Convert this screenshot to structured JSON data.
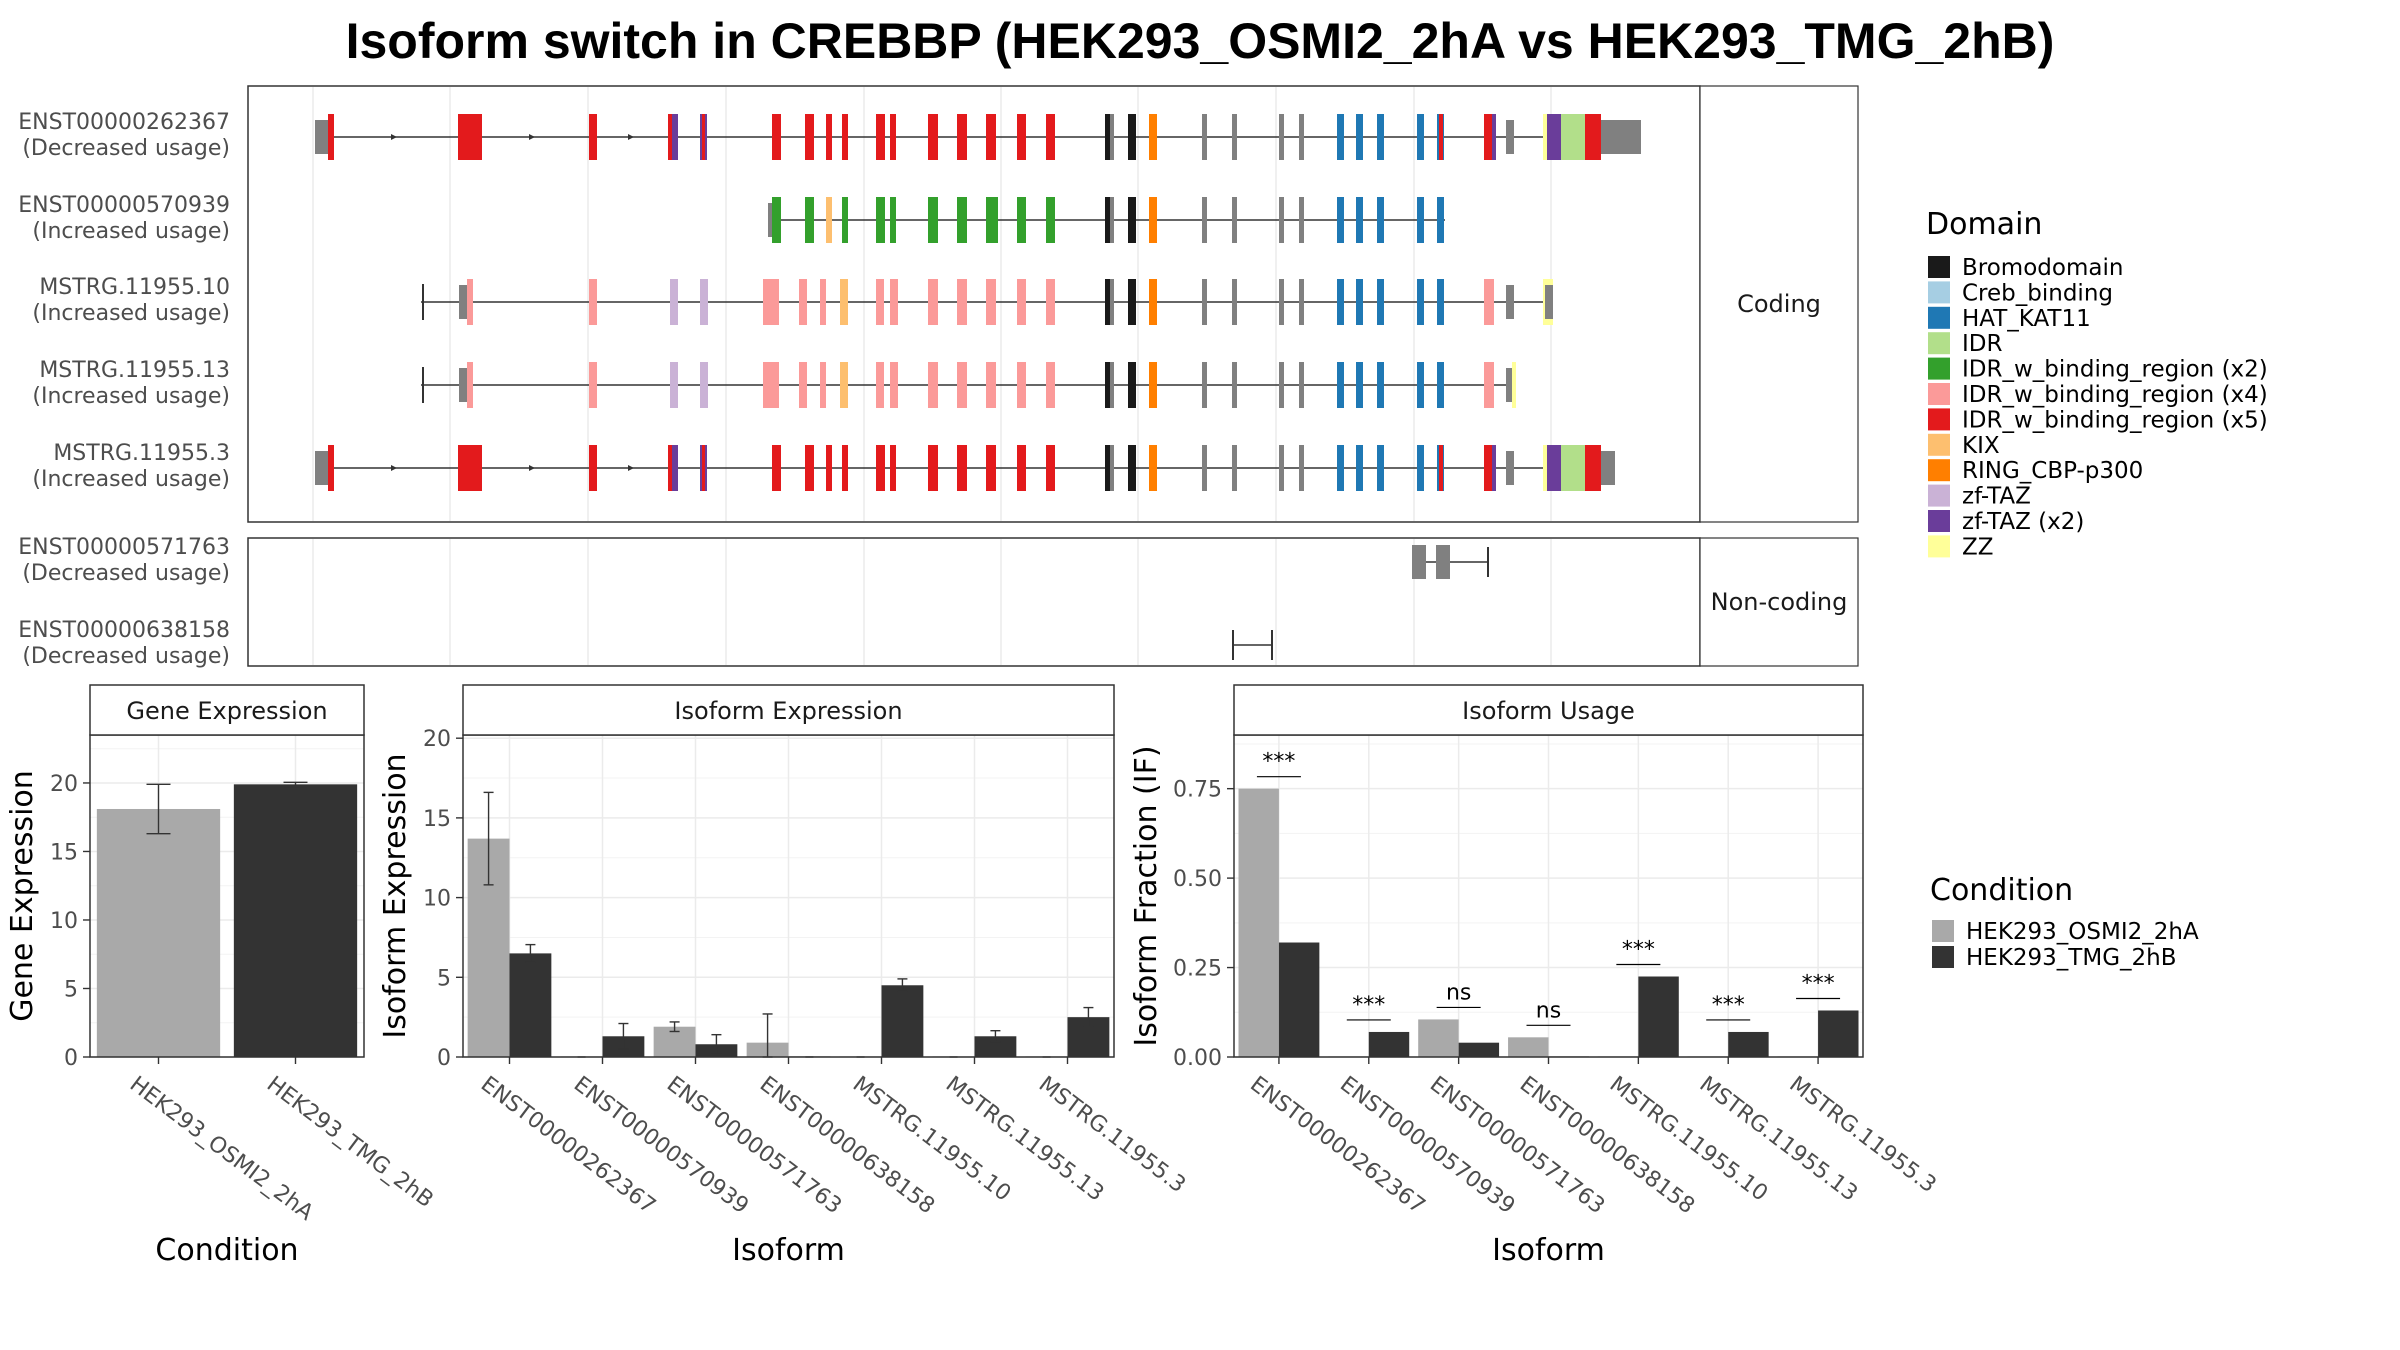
{
  "title": "Isoform switch in CREBBP (HEK293_OSMI2_2hA vs HEK293_TMG_2hB)",
  "colors": {
    "HEK293_OSMI2_2hA": "#a9a9a9",
    "HEK293_TMG_2hB": "#333333",
    "exon_no_domain": "#808080"
  },
  "structure_panel": {
    "facets": [
      "Coding",
      "Non-coding"
    ],
    "transcripts": [
      {
        "id": "ENST00000262367",
        "usage": "(Decreased usage)",
        "facet": "Coding"
      },
      {
        "id": "ENST00000570939",
        "usage": "(Increased usage)",
        "facet": "Coding"
      },
      {
        "id": "MSTRG.11955.10",
        "usage": "(Increased usage)",
        "facet": "Coding"
      },
      {
        "id": "MSTRG.11955.13",
        "usage": "(Increased usage)",
        "facet": "Coding"
      },
      {
        "id": "MSTRG.11955.3",
        "usage": "(Increased usage)",
        "facet": "Coding"
      },
      {
        "id": "ENST00000571763",
        "usage": "(Decreased usage)",
        "facet": "Non-coding"
      },
      {
        "id": "ENST00000638158",
        "usage": "(Decreased usage)",
        "facet": "Non-coding"
      }
    ]
  },
  "domain_legend": {
    "title": "Domain",
    "items": [
      {
        "label": "Bromodomain",
        "color": "#1a1a1a"
      },
      {
        "label": "Creb_binding",
        "color": "#a6cee3"
      },
      {
        "label": "HAT_KAT11",
        "color": "#1f78b4"
      },
      {
        "label": "IDR",
        "color": "#b2df8a"
      },
      {
        "label": "IDR_w_binding_region (x2)",
        "color": "#33a02c"
      },
      {
        "label": "IDR_w_binding_region (x4)",
        "color": "#fb9a99"
      },
      {
        "label": "IDR_w_binding_region (x5)",
        "color": "#e31a1c"
      },
      {
        "label": "KIX",
        "color": "#fdbf6f"
      },
      {
        "label": "RING_CBP-p300",
        "color": "#ff7f00"
      },
      {
        "label": "zf-TAZ",
        "color": "#cab2d6"
      },
      {
        "label": "zf-TAZ (x2)",
        "color": "#6a3d9a"
      },
      {
        "label": "ZZ",
        "color": "#ffff99"
      }
    ]
  },
  "condition_legend": {
    "title": "Condition",
    "items": [
      {
        "label": "HEK293_OSMI2_2hA",
        "color": "#a9a9a9"
      },
      {
        "label": "HEK293_TMG_2hB",
        "color": "#333333"
      }
    ]
  },
  "chart_data": [
    {
      "type": "bar",
      "title": "Gene Expression",
      "xlabel": "Condition",
      "ylabel": "Gene Expression",
      "ylim": [
        0,
        23.5
      ],
      "yticks": [
        0,
        5,
        10,
        15,
        20
      ],
      "categories": [
        "HEK293_OSMI2_2hA",
        "HEK293_TMG_2hB"
      ],
      "values": [
        18.1,
        19.9
      ],
      "errors": [
        1.8,
        0.15
      ]
    },
    {
      "type": "bar",
      "title": "Isoform Expression",
      "xlabel": "Isoform",
      "ylabel": "Isoform Expression",
      "ylim": [
        0,
        20.2
      ],
      "yticks": [
        0,
        5,
        10,
        15,
        20
      ],
      "categories": [
        "ENST00000262367",
        "ENST00000570939",
        "ENST00000571763",
        "ENST00000638158",
        "MSTRG.11955.10",
        "MSTRG.11955.13",
        "MSTRG.11955.3"
      ],
      "series": [
        {
          "name": "HEK293_OSMI2_2hA",
          "values": [
            13.7,
            0.0,
            1.9,
            0.9,
            0.0,
            0.0,
            0.0
          ],
          "errors": [
            2.9,
            0.0,
            0.3,
            1.8,
            0.0,
            0.0,
            0.0
          ]
        },
        {
          "name": "HEK293_TMG_2hB",
          "values": [
            6.5,
            1.3,
            0.8,
            0.0,
            4.5,
            1.3,
            2.5
          ],
          "errors": [
            0.55,
            0.8,
            0.6,
            0.0,
            0.4,
            0.35,
            0.6
          ]
        }
      ]
    },
    {
      "type": "bar",
      "title": "Isoform Usage",
      "xlabel": "Isoform",
      "ylabel": "Isoform Fraction (IF)",
      "ylim": [
        0,
        0.9
      ],
      "yticks": [
        0.0,
        0.25,
        0.5,
        0.75
      ],
      "ytick_labels": [
        "0.00",
        "0.25",
        "0.50",
        "0.75"
      ],
      "categories": [
        "ENST00000262367",
        "ENST00000570939",
        "ENST00000571763",
        "ENST00000638158",
        "MSTRG.11955.10",
        "MSTRG.11955.13",
        "MSTRG.11955.3"
      ],
      "series": [
        {
          "name": "HEK293_OSMI2_2hA",
          "values": [
            0.75,
            0.0,
            0.105,
            0.055,
            0.0,
            0.0,
            0.0
          ]
        },
        {
          "name": "HEK293_TMG_2hB",
          "values": [
            0.32,
            0.07,
            0.04,
            0.0,
            0.225,
            0.07,
            0.13
          ]
        }
      ],
      "significance": [
        "***",
        "***",
        "ns",
        "ns",
        "***",
        "***",
        "***"
      ]
    }
  ]
}
